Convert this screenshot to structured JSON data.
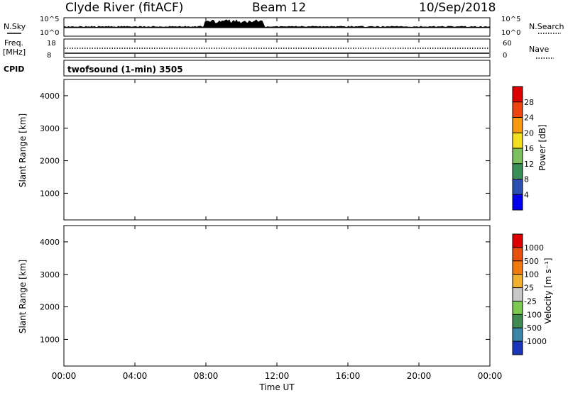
{
  "header": {
    "station": "Clyde River (fitACF)",
    "beam": "Beam 12",
    "date": "10/Sep/2018"
  },
  "top_panels": {
    "nsky_label": "N.Sky",
    "nsky_ticks": [
      "10^5",
      "10^0"
    ],
    "nsearch_label": "N.Search",
    "nsearch_ticks": [
      "10^5",
      "10^0"
    ],
    "freq_label": "Freq.",
    "freq_unit": "[MHz]",
    "freq_ticks": [
      "18",
      "8"
    ],
    "nave_label": "Nave",
    "nave_ticks": [
      "60",
      "0"
    ],
    "cpid_label": "CPID",
    "cpid_text": "twofsound (1-min) 3505"
  },
  "x_axis": {
    "ticks": [
      "00:00",
      "04:00",
      "08:00",
      "12:00",
      "16:00",
      "20:00",
      "00:00"
    ],
    "label": "Time UT"
  },
  "chart_data": [
    {
      "type": "heatmap",
      "parameter": "power",
      "ylabel": "Slant Range [km]",
      "yticks": [
        1000,
        2000,
        3000,
        4000
      ],
      "ylim": [
        180,
        4500
      ],
      "xlim_hours": [
        0,
        24
      ],
      "colorbar_label": "Power [dB]",
      "colorbar_ticks": [
        "28",
        "24",
        "20",
        "16",
        "12",
        "8",
        "4"
      ],
      "colorbar_colors": [
        "#0000ee",
        "#2a4fb0",
        "#3a8e5a",
        "#7dc060",
        "#f2e020",
        "#f79a10",
        "#ee4410",
        "#dd0000"
      ],
      "grid": false
    },
    {
      "type": "heatmap",
      "parameter": "velocity",
      "ylabel": "Slant Range [km]",
      "yticks": [
        1000,
        2000,
        3000,
        4000
      ],
      "ylim": [
        180,
        4500
      ],
      "xlim_hours": [
        0,
        24
      ],
      "colorbar_label": "Velocity [m s⁻¹]",
      "colorbar_ticks": [
        "1000",
        "500",
        "100",
        "25",
        "-25",
        "-100",
        "-500",
        "-1000"
      ],
      "colorbar_colors": [
        "#1b36b8",
        "#3a86a8",
        "#3e8a50",
        "#7cc850",
        "#c8c8c8",
        "#f0b030",
        "#f07a10",
        "#e85010",
        "#dd0000"
      ],
      "grid": false
    }
  ]
}
